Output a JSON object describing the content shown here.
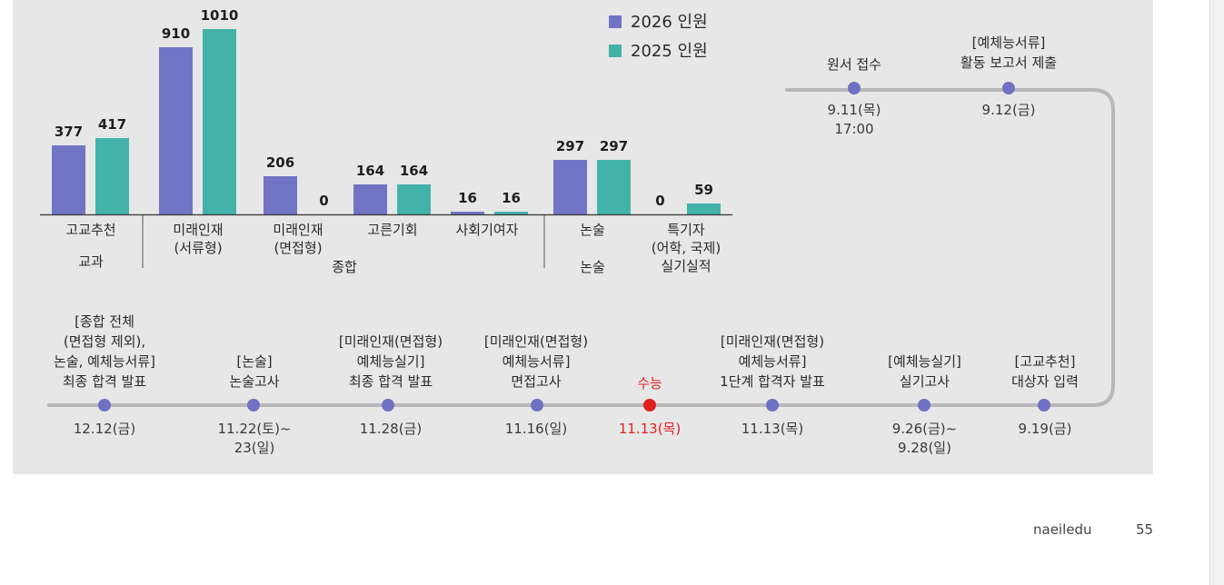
{
  "chart_data": {
    "type": "bar",
    "series": [
      {
        "name": "2026 인원",
        "color": "#7174c4",
        "values": [
          377,
          910,
          206,
          164,
          16,
          297,
          0
        ]
      },
      {
        "name": "2025 인원",
        "color": "#43b3aa",
        "values": [
          417,
          1010,
          0,
          164,
          16,
          297,
          59
        ]
      }
    ],
    "categories": [
      "고교추천",
      "미래인재\n(서류형)",
      "미래인재\n(면접형)",
      "고른기회",
      "사회기여자",
      "논술",
      "특기자\n(어학, 국제)\n실기실적"
    ],
    "groups": [
      "교과",
      "종합",
      "논술"
    ],
    "ylim": [
      0,
      1010
    ],
    "legend_position": "top-right"
  },
  "timeline": {
    "top": [
      {
        "title": "원서 접수",
        "date": "9.11(목)\n17:00"
      },
      {
        "title": "[예체능서류]\n활동 보고서 제출",
        "date": "9.12(금)"
      }
    ],
    "bottom": [
      {
        "title": "[종합 전체\n(면접형 제외),\n논술, 예체능서류]\n최종 합격 발표",
        "date": "12.12(금)"
      },
      {
        "title": "[논술]\n논술고사",
        "date": "11.22(토)~\n23(일)"
      },
      {
        "title": "[미래인재(면접형)\n예체능실기]\n최종 합격 발표",
        "date": "11.28(금)"
      },
      {
        "title": "[미래인재(면접형)\n예체능서류]\n면접고사",
        "date": "11.16(일)"
      },
      {
        "title": "수능",
        "date": "11.13(목)",
        "highlight": true
      },
      {
        "title": "[미래인재(면접형)\n예체능서류]\n1단계 합격자 발표",
        "date": "11.13(목)"
      },
      {
        "title": "[예체능실기]\n실기고사",
        "date": "9.26(금)~\n9.28(일)"
      },
      {
        "title": "[고교추천]\n대상자 입력",
        "date": "9.19(금)"
      }
    ]
  },
  "colors": {
    "highlight": "#e02020",
    "dot": "#6f72c2",
    "track": "#b7b7b9"
  },
  "footer": {
    "brand": "naeiledu",
    "page": "55"
  }
}
